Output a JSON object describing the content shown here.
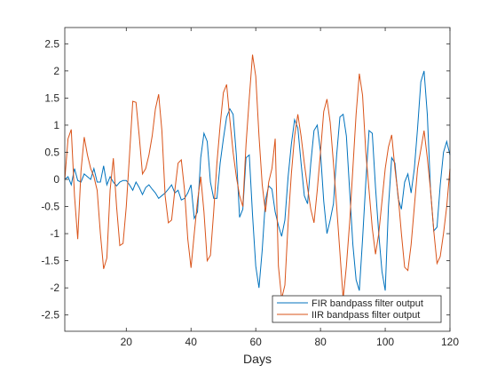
{
  "chart_data": {
    "type": "line",
    "title": "",
    "xlabel": "Days",
    "ylabel": "",
    "xlim": [
      1,
      120
    ],
    "ylim": [
      -2.8,
      2.8
    ],
    "xticks": [
      20,
      40,
      60,
      80,
      100,
      120
    ],
    "xtick_labels": [
      "20",
      "40",
      "60",
      "80",
      "100",
      "120"
    ],
    "yticks": [
      -2.5,
      -2,
      -1.5,
      -1,
      -0.5,
      0,
      0.5,
      1,
      1.5,
      2,
      2.5
    ],
    "ytick_labels": [
      "-2.5",
      "-2",
      "-1.5",
      "-1",
      "-0.5",
      "0",
      "0.5",
      "1",
      "1.5",
      "2",
      "2.5"
    ],
    "grid": false,
    "legend_position": "bottom-right",
    "series": [
      {
        "name": "FIR bandpass filter output",
        "color": "#0072BD",
        "x": [
          1,
          2,
          3,
          4,
          5,
          6,
          7,
          8,
          9,
          10,
          11,
          12,
          13,
          14,
          15,
          16,
          17,
          18,
          19,
          20,
          21,
          22,
          23,
          24,
          25,
          26,
          27,
          28,
          29,
          30,
          31,
          32,
          33,
          34,
          35,
          36,
          37,
          38,
          39,
          40,
          41,
          42,
          43,
          44,
          45,
          46,
          47,
          48,
          49,
          50,
          51,
          52,
          53,
          54,
          55,
          56,
          57,
          58,
          59,
          60,
          61,
          62,
          63,
          64,
          65,
          66,
          67,
          68,
          69,
          70,
          71,
          72,
          73,
          74,
          75,
          76,
          77,
          78,
          79,
          80,
          81,
          82,
          83,
          84,
          85,
          86,
          87,
          88,
          89,
          90,
          91,
          92,
          93,
          94,
          95,
          96,
          97,
          98,
          99,
          100,
          101,
          102,
          103,
          104,
          105,
          106,
          107,
          108,
          109,
          110,
          111,
          112,
          113,
          114,
          115,
          116,
          117,
          118,
          119,
          120
        ],
        "values": [
          0.0,
          0.05,
          -0.1,
          0.2,
          -0.02,
          -0.05,
          0.1,
          0.05,
          0.0,
          0.2,
          -0.05,
          -0.05,
          0.25,
          -0.1,
          0.05,
          -0.05,
          -0.12,
          -0.05,
          -0.02,
          -0.02,
          -0.1,
          -0.2,
          -0.05,
          -0.15,
          -0.28,
          -0.15,
          -0.1,
          -0.18,
          -0.25,
          -0.35,
          -0.3,
          -0.25,
          -0.18,
          -0.1,
          -0.25,
          -0.2,
          -0.38,
          -0.35,
          -0.25,
          -0.1,
          -0.72,
          -0.6,
          0.4,
          0.85,
          0.7,
          -0.05,
          -0.35,
          -0.35,
          0.3,
          0.75,
          1.15,
          1.3,
          1.2,
          0.45,
          -0.7,
          -0.55,
          0.4,
          0.45,
          -0.65,
          -1.6,
          -2.0,
          -1.3,
          -0.38,
          -0.12,
          -0.18,
          -0.6,
          -0.85,
          -1.05,
          -0.75,
          0.05,
          0.65,
          1.1,
          0.95,
          0.3,
          -0.3,
          -0.45,
          0.3,
          0.9,
          1.0,
          0.5,
          -0.4,
          -1.0,
          -0.75,
          -0.45,
          0.45,
          1.15,
          1.2,
          0.8,
          -0.2,
          -1.2,
          -1.85,
          -2.05,
          -1.1,
          -0.05,
          0.9,
          0.85,
          -0.15,
          -1.0,
          -1.7,
          -2.05,
          -0.5,
          0.4,
          0.3,
          -0.35,
          -0.55,
          -0.05,
          0.1,
          -0.25,
          0.2,
          0.95,
          1.8,
          2.0,
          1.2,
          -0.2,
          -0.95,
          -0.88,
          -0.1,
          0.5,
          0.7,
          0.45
        ]
      },
      {
        "name": "IIR bandpass filter output",
        "color": "#D95319",
        "x": [
          1,
          2,
          3,
          4,
          5,
          6,
          7,
          8,
          9,
          10,
          11,
          12,
          13,
          14,
          15,
          16,
          17,
          18,
          19,
          20,
          21,
          22,
          23,
          24,
          25,
          26,
          27,
          28,
          29,
          30,
          31,
          32,
          33,
          34,
          35,
          36,
          37,
          38,
          39,
          40,
          41,
          42,
          43,
          44,
          45,
          46,
          47,
          48,
          49,
          50,
          51,
          52,
          53,
          54,
          55,
          56,
          57,
          58,
          59,
          60,
          61,
          62,
          63,
          64,
          65,
          66,
          67,
          68,
          69,
          70,
          71,
          72,
          73,
          74,
          75,
          76,
          77,
          78,
          79,
          80,
          81,
          82,
          83,
          84,
          85,
          86,
          87,
          88,
          89,
          90,
          91,
          92,
          93,
          94,
          95,
          96,
          97,
          98,
          99,
          100,
          101,
          102,
          103,
          104,
          105,
          106,
          107,
          108,
          109,
          110,
          111,
          112,
          113,
          114,
          115,
          116,
          117,
          118,
          119,
          120
        ],
        "values": [
          0.0,
          0.75,
          0.92,
          -0.3,
          -1.1,
          0.15,
          0.78,
          0.45,
          0.2,
          0.05,
          -0.2,
          -1.0,
          -1.65,
          -1.45,
          -0.2,
          0.39,
          -0.5,
          -1.22,
          -1.18,
          -0.5,
          0.45,
          1.44,
          1.42,
          0.8,
          0.1,
          0.2,
          0.45,
          0.8,
          1.3,
          1.57,
          0.9,
          -0.3,
          -0.8,
          -0.75,
          -0.2,
          0.3,
          0.36,
          -0.2,
          -1.1,
          -1.63,
          -1.0,
          -0.4,
          0.05,
          -0.6,
          -1.5,
          -1.4,
          -0.6,
          0.3,
          1.0,
          1.6,
          1.75,
          1.1,
          0.5,
          0.05,
          -0.3,
          -0.5,
          0.65,
          1.5,
          2.3,
          1.9,
          0.8,
          -0.1,
          -0.6,
          -0.05,
          0.2,
          0.75,
          -1.6,
          -2.2,
          -1.95,
          -0.8,
          0.1,
          0.8,
          1.2,
          0.8,
          0.3,
          -0.15,
          -0.55,
          -0.8,
          -0.2,
          0.5,
          1.25,
          1.48,
          1.05,
          0.3,
          -0.5,
          -1.35,
          -2.2,
          -1.6,
          -0.8,
          0.2,
          1.2,
          1.95,
          1.55,
          0.5,
          -0.2,
          -0.9,
          -1.38,
          -1.0,
          -0.4,
          0.2,
          0.6,
          0.82,
          0.2,
          -0.3,
          -1.0,
          -1.62,
          -1.68,
          -1.2,
          -0.5,
          0.2,
          0.55,
          0.9,
          0.4,
          -0.2,
          -0.95,
          -1.55,
          -1.42,
          -1.0,
          -0.5,
          0.2
        ]
      }
    ]
  }
}
